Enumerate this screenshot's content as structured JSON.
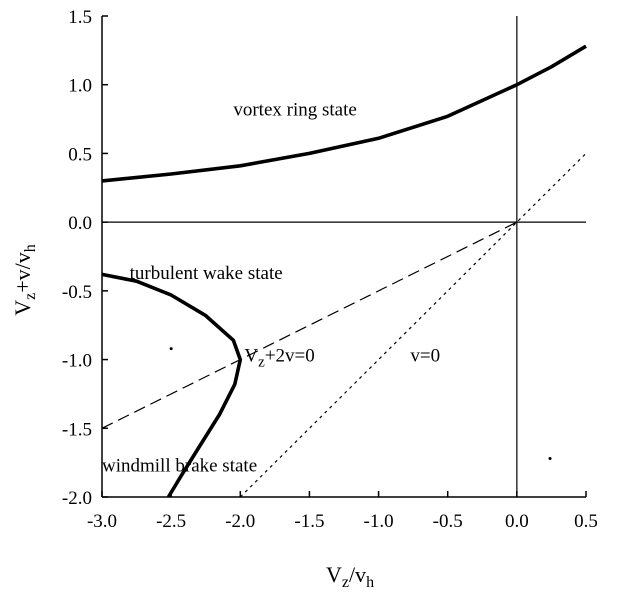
{
  "chart_data": {
    "type": "line",
    "xlabel": "V",
    "xlabel_sub": "z",
    "xlabel_mid": "/v",
    "xlabel_sub2": "h",
    "ylabel": "V",
    "ylabel_sub": "z",
    "ylabel_mid": "+v/v",
    "ylabel_sub2": "h",
    "xlim": [
      -3.0,
      0.5
    ],
    "ylim": [
      -2.0,
      1.5
    ],
    "x_ticks": [
      -3.0,
      -2.5,
      -2.0,
      -1.5,
      -1.0,
      -0.5,
      0.0,
      0.5
    ],
    "x_tick_labels": [
      "-3.0",
      "-2.5",
      "-2.0",
      "-1.5",
      "-1.0",
      "-0.5",
      "0.0",
      "0.5"
    ],
    "y_ticks": [
      1.5,
      1.0,
      0.5,
      0.0,
      -0.5,
      -1.0,
      -1.5,
      -2.0
    ],
    "y_tick_labels": [
      "1.5",
      "1.0",
      "0.5",
      "0.0",
      "-0.5",
      "-1.0",
      "-1.5",
      "-2.0"
    ],
    "grid": false,
    "series": [
      {
        "style": "solid-bold",
        "x": [
          -3.0,
          -2.5,
          -2.0,
          -1.5,
          -1.0,
          -0.5,
          0.0,
          0.25,
          0.5
        ],
        "y": [
          0.3,
          0.35,
          0.41,
          0.5,
          0.61,
          0.77,
          1.0,
          1.13,
          1.28
        ]
      },
      {
        "style": "solid-bold",
        "x": [
          -3.0,
          -2.75,
          -2.5,
          -2.25,
          -2.05,
          -2.0,
          -2.04,
          -2.15,
          -2.3,
          -2.43,
          -2.52
        ],
        "y": [
          -0.38,
          -0.43,
          -0.53,
          -0.68,
          -0.86,
          -1.0,
          -1.18,
          -1.4,
          -1.64,
          -1.85,
          -2.0
        ]
      },
      {
        "style": "dashed",
        "x": [
          -3.0,
          0.0
        ],
        "y": [
          -1.5,
          0.0
        ]
      },
      {
        "style": "dotted",
        "x": [
          -2.0,
          0.5
        ],
        "y": [
          -2.0,
          0.5
        ]
      }
    ],
    "reference_lines": {
      "x": 0.0,
      "y": 0.0
    },
    "dots": [
      {
        "x": -2.5,
        "y": -0.92
      },
      {
        "x": 0.24,
        "y": -1.72
      }
    ],
    "annotations": [
      {
        "name": "vortex-ring-label",
        "text": "vortex ring state",
        "x": -2.05,
        "y": 0.82
      },
      {
        "name": "turbulent-wake-label",
        "text": "turbulent wake state",
        "x": -2.8,
        "y": -0.37
      },
      {
        "name": "windmill-brake-label",
        "text": "windmill brake state",
        "x": -3.0,
        "y": -1.77
      }
    ],
    "line_labels": [
      {
        "name": "vz-2v-label",
        "text_main": "V",
        "text_sub": "z",
        "text_rest": "+2v=0",
        "x": -1.97,
        "y": -0.97
      },
      {
        "name": "v0-label",
        "text": "v=0",
        "x": -0.77,
        "y": -0.97
      }
    ]
  }
}
